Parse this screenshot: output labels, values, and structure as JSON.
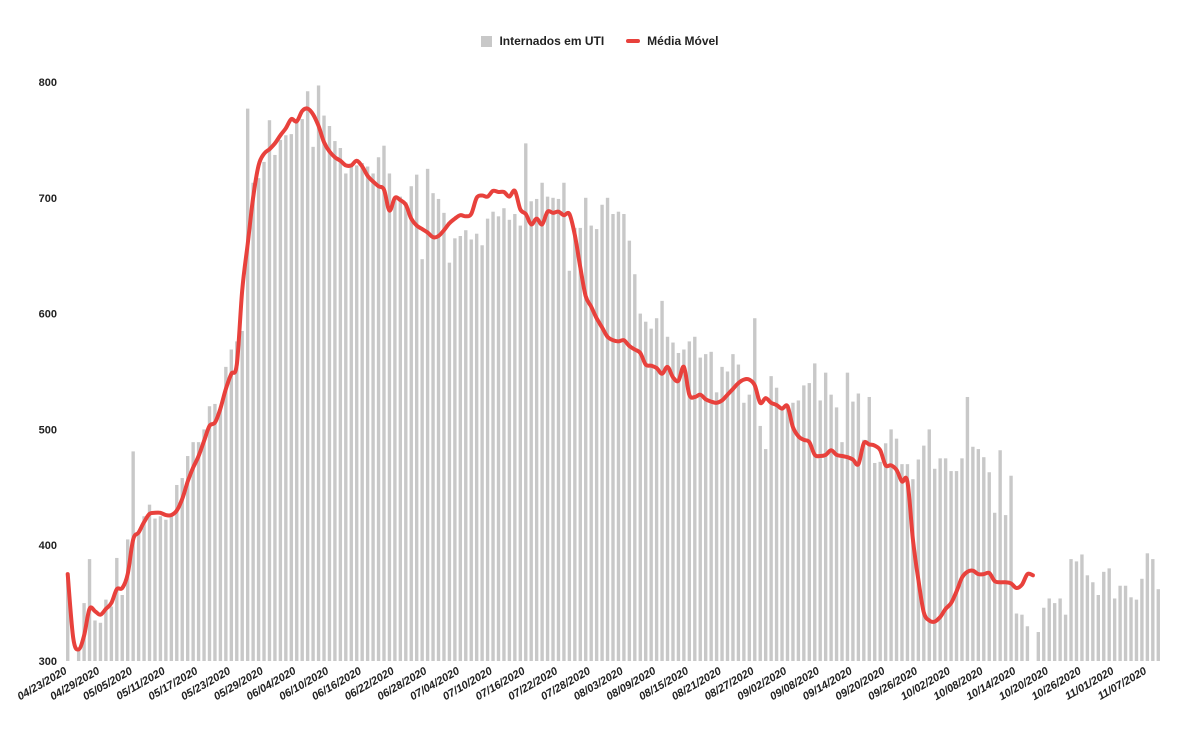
{
  "chart_data": {
    "type": "bar",
    "legend_position": "top-center",
    "grid": false,
    "ylim": [
      300,
      800
    ],
    "yticks": [
      300,
      400,
      500,
      600,
      700,
      800
    ],
    "tick_labels": [
      "04/23/2020",
      "04/29/2020",
      "05/05/2020",
      "05/11/2020",
      "05/17/2020",
      "05/23/2020",
      "05/29/2020",
      "06/04/2020",
      "06/10/2020",
      "06/16/2020",
      "06/22/2020",
      "06/28/2020",
      "07/04/2020",
      "07/10/2020",
      "07/16/2020",
      "07/22/2020",
      "07/28/2020",
      "08/03/2020",
      "08/09/2020",
      "08/15/2020",
      "08/21/2020",
      "08/27/2020",
      "09/02/2020",
      "09/08/2020",
      "09/14/2020",
      "09/20/2020",
      "09/26/2020",
      "10/02/2020",
      "10/08/2020",
      "10/14/2020",
      "10/20/2020",
      "10/26/2020",
      "11/01/2020",
      "11/07/2020"
    ],
    "series": [
      {
        "name": "Internados em UTI",
        "type": "bar",
        "color": "#c8c8c8",
        "values": [
          375,
          300,
          310,
          350,
          388,
          335,
          333,
          353,
          347,
          389,
          357,
          405,
          481,
          412,
          425,
          435,
          423,
          425,
          422,
          427,
          452,
          458,
          477,
          489,
          489,
          500,
          520,
          522,
          518,
          554,
          569,
          576,
          585,
          777,
          713,
          717,
          731,
          767,
          737,
          750,
          754,
          755,
          768,
          768,
          792,
          744,
          797,
          771,
          762,
          749,
          743,
          721,
          728,
          728,
          730,
          727,
          721,
          735,
          745,
          721,
          700,
          701,
          696,
          710,
          720,
          647,
          725,
          704,
          699,
          687,
          644,
          665,
          667,
          672,
          664,
          669,
          659,
          682,
          688,
          684,
          691,
          681,
          686,
          676,
          747,
          697,
          699,
          713,
          701,
          700,
          699,
          713,
          637,
          674,
          674,
          700,
          676,
          673,
          694,
          700,
          686,
          688,
          686,
          663,
          634,
          600,
          593,
          587,
          596,
          611,
          580,
          575,
          566,
          569,
          576,
          580,
          562,
          565,
          567,
          532,
          554,
          550,
          565,
          556,
          523,
          530,
          596,
          503,
          483,
          546,
          536,
          517,
          521,
          523,
          525,
          538,
          540,
          557,
          525,
          549,
          530,
          519,
          489,
          549,
          524,
          531,
          491,
          528,
          471,
          472,
          488,
          500,
          492,
          470,
          470,
          457,
          474,
          486,
          500,
          466,
          475,
          475,
          464,
          464,
          475,
          528,
          485,
          483,
          476,
          463,
          428,
          482,
          426,
          460,
          341,
          340,
          330,
          300,
          325,
          346,
          354,
          350,
          354,
          340,
          388,
          386,
          392,
          374,
          368,
          357,
          377,
          380,
          354,
          365,
          365,
          355,
          353,
          371,
          393,
          388,
          362
        ]
      },
      {
        "name": "Média Móvel",
        "type": "line",
        "color": "#e8413c",
        "values": [
          375,
          320,
          310,
          322,
          345,
          343,
          340,
          345,
          350,
          362,
          363,
          375,
          405,
          411,
          420,
          427,
          428,
          428,
          426,
          426,
          430,
          440,
          455,
          467,
          477,
          490,
          503,
          506,
          518,
          535,
          548,
          556,
          620,
          660,
          700,
          728,
          738,
          742,
          747,
          754,
          760,
          768,
          766,
          775,
          777,
          772,
          762,
          748,
          740,
          735,
          732,
          728,
          728,
          732,
          727,
          719,
          714,
          710,
          707,
          689,
          700,
          698,
          694,
          682,
          676,
          673,
          670,
          666,
          667,
          672,
          678,
          682,
          685,
          684,
          686,
          700,
          702,
          701,
          706,
          705,
          705,
          701,
          706,
          690,
          686,
          677,
          682,
          677,
          688,
          687,
          688,
          685,
          686,
          668,
          640,
          615,
          606,
          596,
          588,
          580,
          577,
          576,
          577,
          572,
          569,
          566,
          556,
          555,
          553,
          548,
          554,
          545,
          542,
          554,
          530,
          528,
          530,
          526,
          524,
          523,
          525,
          530,
          535,
          540,
          543,
          543,
          538,
          523,
          527,
          523,
          521,
          518,
          520,
          502,
          494,
          491,
          489,
          478,
          477,
          478,
          482,
          478,
          477,
          476,
          474,
          470,
          488,
          487,
          486,
          482,
          469,
          469,
          465,
          455,
          455,
          405,
          370,
          342,
          335,
          334,
          338,
          345,
          350,
          360,
          372,
          377,
          378,
          375,
          375,
          376,
          369,
          368,
          368,
          367,
          363,
          366,
          375,
          374
        ]
      }
    ]
  }
}
